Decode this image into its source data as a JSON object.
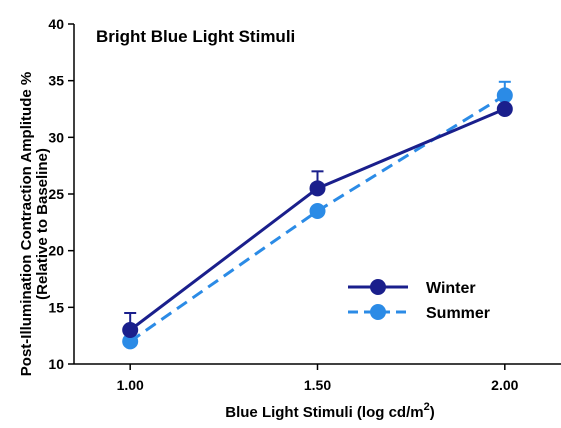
{
  "chart_data": {
    "type": "line",
    "title": "Bright Blue Light Stimuli",
    "xlabel": "Blue Light Stimuli (log cd/m",
    "xlabel_sup": "2",
    "xlabel_end": ")",
    "ylabel_line1": "Post-Illumination  Contraction Amplitude %",
    "ylabel_line2": "(Relative to Baseline)",
    "x": [
      1.0,
      1.5,
      2.0
    ],
    "x_tick_labels": [
      "1.00",
      "1.50",
      "2.00"
    ],
    "xlim": [
      0.85,
      2.15
    ],
    "ylim": [
      10,
      40
    ],
    "y_ticks": [
      10,
      15,
      20,
      25,
      30,
      35,
      40
    ],
    "y_tick_labels": [
      "10",
      "15",
      "20",
      "25",
      "30",
      "35",
      "40"
    ],
    "grid": false,
    "legend_position": "lower-right",
    "series": [
      {
        "name": "Winter",
        "values": [
          13.0,
          25.5,
          32.5
        ],
        "error_upper": [
          1.5,
          1.5,
          0.0
        ],
        "color": "#1a1f8c",
        "line_style": "solid"
      },
      {
        "name": "Summer",
        "values": [
          12.0,
          23.5,
          33.7
        ],
        "error_upper": [
          0.0,
          0.0,
          1.2
        ],
        "color": "#2b8be6",
        "line_style": "dashed"
      }
    ]
  }
}
